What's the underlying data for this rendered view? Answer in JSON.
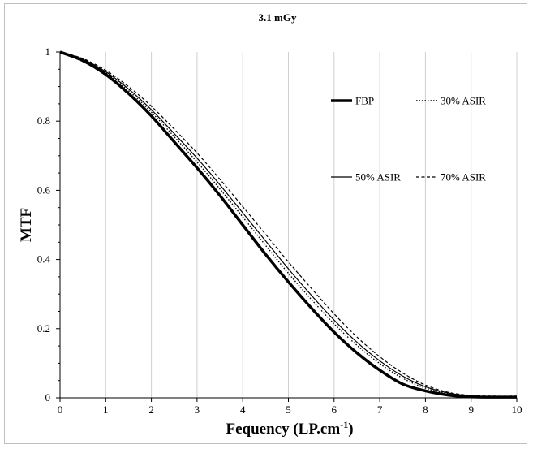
{
  "chart_data": {
    "type": "line",
    "title": "3.1 mGy",
    "xlabel": "Fequency (LP.cm",
    "xlabel_sup": "-1",
    "xlabel_suffix": ")",
    "ylabel": "MTF",
    "xlim": [
      0,
      10
    ],
    "ylim": [
      0,
      1
    ],
    "xticks": [
      "0",
      "1",
      "2",
      "3",
      "4",
      "5",
      "6",
      "7",
      "8",
      "9",
      "10"
    ],
    "yticks": [
      "0",
      "0.2",
      "0.4",
      "0.6",
      "0.8",
      "1"
    ],
    "grid": "vertical",
    "legend": "top-right",
    "x": [
      0,
      0.5,
      1,
      1.5,
      2,
      2.5,
      3,
      3.5,
      4,
      4.5,
      5,
      5.5,
      6,
      6.5,
      7,
      7.5,
      8,
      8.5,
      9,
      9.5,
      10
    ],
    "series": [
      {
        "name": "FBP",
        "style": "thick",
        "values": [
          1.0,
          0.975,
          0.935,
          0.88,
          0.815,
          0.74,
          0.665,
          0.585,
          0.5,
          0.415,
          0.335,
          0.26,
          0.19,
          0.13,
          0.08,
          0.04,
          0.02,
          0.008,
          0.003,
          0.002,
          0.002
        ]
      },
      {
        "name": "30% ASIR",
        "style": "dotted",
        "values": [
          1.0,
          0.978,
          0.94,
          0.888,
          0.826,
          0.755,
          0.682,
          0.604,
          0.523,
          0.441,
          0.36,
          0.285,
          0.214,
          0.152,
          0.099,
          0.057,
          0.028,
          0.012,
          0.005,
          0.003,
          0.003
        ]
      },
      {
        "name": "50% ASIR",
        "style": "solid",
        "values": [
          1.0,
          0.979,
          0.943,
          0.893,
          0.833,
          0.764,
          0.693,
          0.616,
          0.535,
          0.454,
          0.373,
          0.297,
          0.225,
          0.161,
          0.107,
          0.063,
          0.032,
          0.014,
          0.006,
          0.004,
          0.004
        ]
      },
      {
        "name": "70% ASIR",
        "style": "dashed",
        "values": [
          1.0,
          0.981,
          0.947,
          0.9,
          0.843,
          0.777,
          0.708,
          0.632,
          0.553,
          0.473,
          0.393,
          0.317,
          0.243,
          0.176,
          0.119,
          0.072,
          0.037,
          0.016,
          0.007,
          0.005,
          0.005
        ]
      }
    ]
  }
}
